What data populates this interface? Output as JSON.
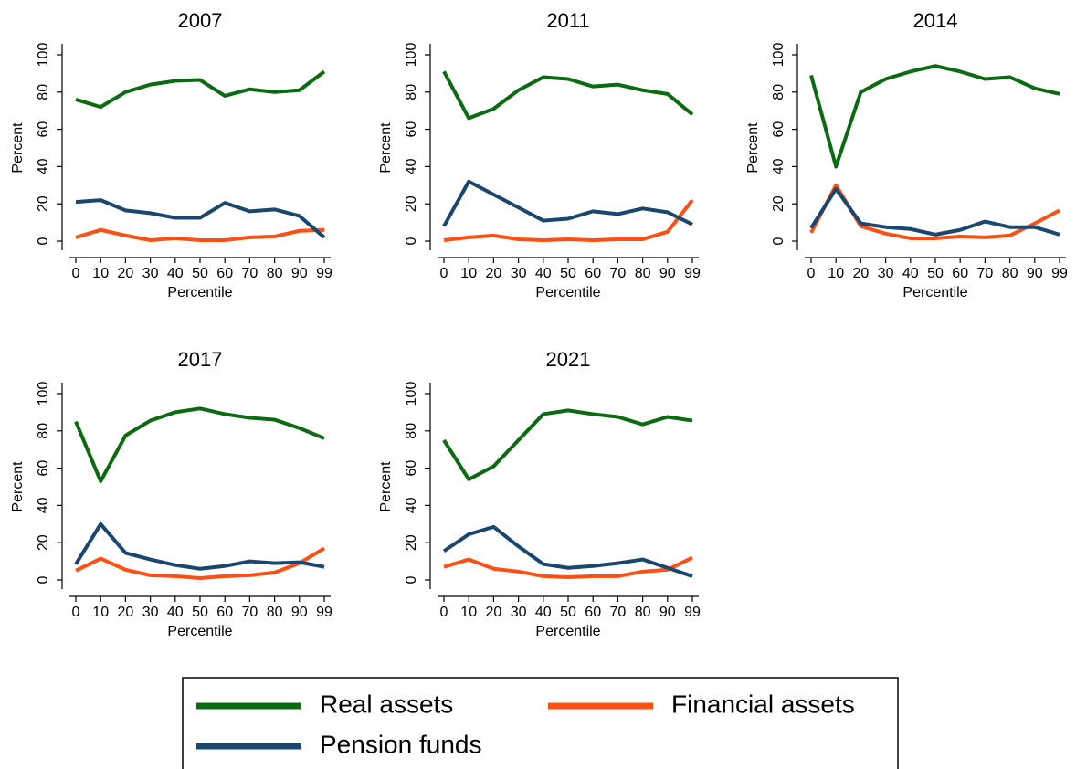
{
  "chart_data": [
    {
      "type": "line",
      "title": "2007",
      "xlabel": "Percentile",
      "ylabel": "Percent",
      "categories": [
        "0",
        "10",
        "20",
        "30",
        "40",
        "50",
        "60",
        "70",
        "80",
        "90",
        "99"
      ],
      "ylim": [
        0,
        100
      ],
      "yticks": [
        0,
        20,
        40,
        60,
        80,
        100
      ],
      "series": [
        {
          "name": "Real assets",
          "color": "#0b6b10",
          "values": [
            76,
            72,
            80,
            84,
            86,
            86.5,
            78,
            81.5,
            80,
            81,
            91
          ]
        },
        {
          "name": "Financial assets",
          "color": "#ff4f12",
          "values": [
            2,
            6,
            3,
            0.5,
            1.5,
            0.5,
            0.5,
            2,
            2.5,
            5.5,
            6
          ]
        },
        {
          "name": "Pension funds",
          "color": "#1a476f",
          "values": [
            21,
            22,
            16.5,
            15,
            12.5,
            12.5,
            20.5,
            16,
            17,
            13.5,
            2
          ]
        }
      ]
    },
    {
      "type": "line",
      "title": "2011",
      "xlabel": "Percentile",
      "ylabel": "Percent",
      "categories": [
        "0",
        "10",
        "20",
        "30",
        "40",
        "50",
        "60",
        "70",
        "80",
        "90",
        "99"
      ],
      "ylim": [
        0,
        100
      ],
      "yticks": [
        0,
        20,
        40,
        60,
        80,
        100
      ],
      "series": [
        {
          "name": "Real assets",
          "color": "#0b6b10",
          "values": [
            91,
            66,
            71,
            81,
            88,
            87,
            83,
            84,
            81,
            79,
            68
          ]
        },
        {
          "name": "Financial assets",
          "color": "#ff4f12",
          "values": [
            0.5,
            2,
            3,
            1,
            0.5,
            1,
            0.5,
            1,
            1,
            5,
            22
          ]
        },
        {
          "name": "Pension funds",
          "color": "#1a476f",
          "values": [
            8,
            32,
            25,
            18,
            11,
            12,
            16,
            14.5,
            17.5,
            15.5,
            9
          ]
        }
      ]
    },
    {
      "type": "line",
      "title": "2014",
      "xlabel": "Percentile",
      "ylabel": "Percent",
      "categories": [
        "0",
        "10",
        "20",
        "30",
        "40",
        "50",
        "60",
        "70",
        "80",
        "90",
        "99"
      ],
      "ylim": [
        0,
        100
      ],
      "yticks": [
        0,
        20,
        40,
        60,
        80,
        100
      ],
      "series": [
        {
          "name": "Real assets",
          "color": "#0b6b10",
          "values": [
            89,
            40,
            80,
            87,
            91,
            94,
            91,
            87,
            88,
            82,
            79
          ]
        },
        {
          "name": "Financial assets",
          "color": "#ff4f12",
          "values": [
            4.5,
            30,
            8,
            4,
            1.5,
            1.5,
            2.5,
            2,
            3,
            9.5,
            16.5
          ]
        },
        {
          "name": "Pension funds",
          "color": "#1a476f",
          "values": [
            7,
            28,
            9.5,
            7.5,
            6.5,
            3.5,
            6,
            10.5,
            7.5,
            7.5,
            3.5
          ]
        }
      ]
    },
    {
      "type": "line",
      "title": "2017",
      "xlabel": "Percentile",
      "ylabel": "Percent",
      "categories": [
        "0",
        "10",
        "20",
        "30",
        "40",
        "50",
        "60",
        "70",
        "80",
        "90",
        "99"
      ],
      "ylim": [
        0,
        100
      ],
      "yticks": [
        0,
        20,
        40,
        60,
        80,
        100
      ],
      "series": [
        {
          "name": "Real assets",
          "color": "#0b6b10",
          "values": [
            85,
            53,
            77.5,
            85.5,
            90,
            92,
            89,
            87,
            86,
            81.5,
            76
          ]
        },
        {
          "name": "Financial assets",
          "color": "#ff4f12",
          "values": [
            5,
            11.5,
            5.5,
            2.5,
            2,
            1,
            2,
            2.5,
            4,
            9,
            17
          ]
        },
        {
          "name": "Pension funds",
          "color": "#1a476f",
          "values": [
            8.5,
            30,
            14.5,
            11,
            8,
            6,
            7.5,
            10,
            9,
            9.5,
            7
          ]
        }
      ]
    },
    {
      "type": "line",
      "title": "2021",
      "xlabel": "Percentile",
      "ylabel": "Percent",
      "categories": [
        "0",
        "10",
        "20",
        "30",
        "40",
        "50",
        "60",
        "70",
        "80",
        "90",
        "99"
      ],
      "ylim": [
        0,
        100
      ],
      "yticks": [
        0,
        20,
        40,
        60,
        80,
        100
      ],
      "series": [
        {
          "name": "Real assets",
          "color": "#0b6b10",
          "values": [
            75,
            54,
            61,
            75,
            89,
            91,
            89,
            87.5,
            83.5,
            87.5,
            85.5
          ]
        },
        {
          "name": "Financial assets",
          "color": "#ff4f12",
          "values": [
            7,
            11,
            6,
            4.5,
            2,
            1.5,
            2,
            2,
            4.5,
            5.5,
            12
          ]
        },
        {
          "name": "Pension funds",
          "color": "#1a476f",
          "values": [
            15.5,
            24.5,
            28.5,
            18,
            8.5,
            6.5,
            7.5,
            9,
            11,
            6.5,
            2
          ]
        }
      ]
    }
  ]
}
